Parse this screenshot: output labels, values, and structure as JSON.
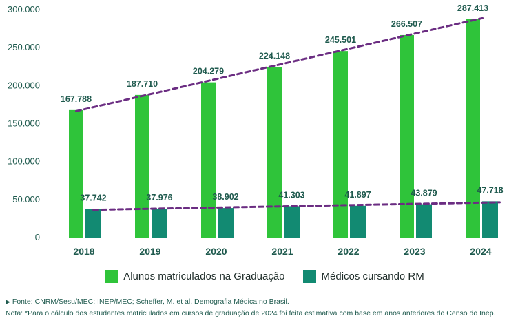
{
  "colors": {
    "series_graduacao": "#2fc43a",
    "series_rm": "#128a72",
    "trend": "#6b2d82",
    "text": "#1f5a4e"
  },
  "chart_data": {
    "type": "bar",
    "categories": [
      "2018",
      "2019",
      "2020",
      "2021",
      "2022",
      "2023",
      "2024"
    ],
    "series": [
      {
        "name": "Alunos matriculados na Graduação",
        "values": [
          167788,
          187710,
          204279,
          224148,
          245501,
          266507,
          287413
        ],
        "labels": [
          "167.788",
          "187.710",
          "204.279",
          "224.148",
          "245.501",
          "266.507",
          "287.413"
        ]
      },
      {
        "name": "Médicos cursando RM",
        "values": [
          37742,
          37976,
          38902,
          41303,
          41897,
          43879,
          47718
        ],
        "labels": [
          "37.742",
          "37.976",
          "38.902",
          "41.303",
          "41.897",
          "43.879",
          "47.718"
        ]
      }
    ],
    "y_ticks": [
      0,
      50000,
      100000,
      150000,
      200000,
      250000,
      300000
    ],
    "y_tick_labels": [
      "0",
      "50.000",
      "100.000",
      "150.000",
      "200.000",
      "250.000",
      "300.000"
    ],
    "ylim": [
      0,
      300000
    ],
    "trendlines": "dashed, one per series",
    "grid": false,
    "legend_position": "bottom-center",
    "title": "",
    "xlabel": "",
    "ylabel": ""
  },
  "legend": {
    "item1": "Alunos matriculados na Graduação",
    "item2": "Médicos cursando RM"
  },
  "notes": {
    "arrow": "▶",
    "fonte": "Fonte: CNRM/Sesu/MEC; INEP/MEC; Scheffer, M. et al. Demografia Médica no Brasil.",
    "nota": "Nota: *Para o cálculo dos estudantes matriculados em cursos de graduação de 2024 foi feita estimativa com base em anos anteriores do Censo do Inep."
  }
}
